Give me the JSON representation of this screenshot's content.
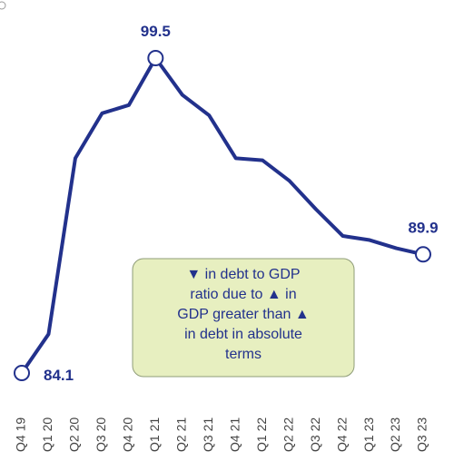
{
  "chart_data": {
    "type": "line",
    "categories": [
      "Q4 19",
      "Q1 20",
      "Q2 20",
      "Q3 20",
      "Q4 20",
      "Q1 21",
      "Q2 21",
      "Q3 21",
      "Q4 21",
      "Q1 22",
      "Q2 22",
      "Q3 22",
      "Q4 22",
      "Q1 23",
      "Q2 23",
      "Q3 23"
    ],
    "values": [
      84.1,
      86.0,
      94.6,
      96.8,
      97.2,
      99.5,
      97.7,
      96.7,
      94.6,
      94.5,
      93.5,
      92.1,
      90.8,
      90.6,
      90.2,
      89.9
    ],
    "value_labels": [
      "84.1",
      null,
      null,
      null,
      null,
      "99.5",
      null,
      null,
      null,
      null,
      null,
      null,
      null,
      null,
      null,
      "89.9"
    ],
    "color": "#22318c",
    "annotation": [
      "▼ in debt to GDP",
      "ratio due to ▲ in",
      "GDP greater than ▲",
      "in debt in absolute",
      "terms"
    ]
  }
}
